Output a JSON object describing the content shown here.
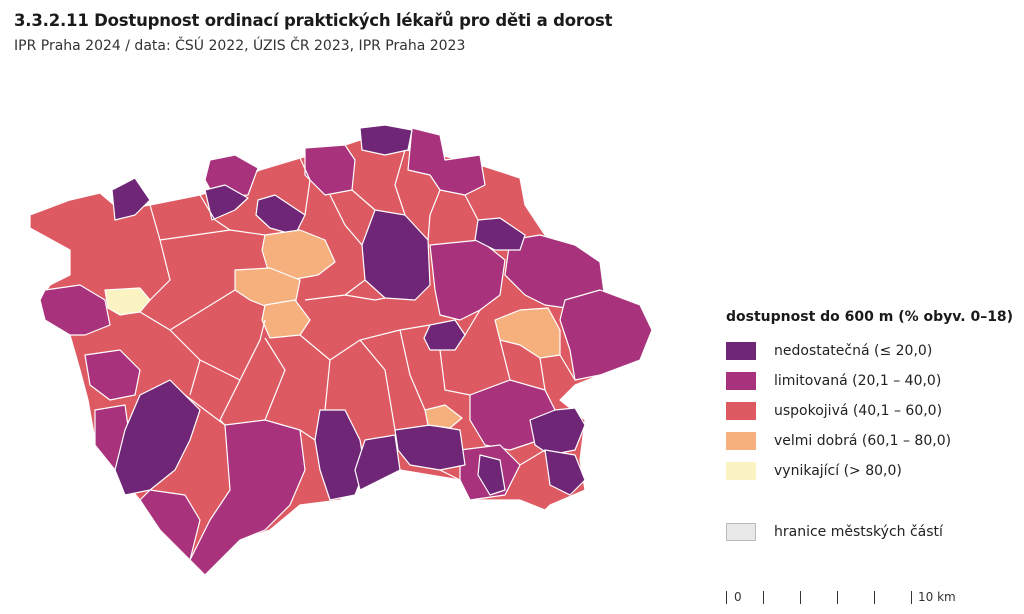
{
  "header": {
    "title": "3.3.2.11 Dostupnost ordinací praktických lékařů pro děti a dorost",
    "subtitle": "IPR Praha 2024 / data: ČSÚ 2022, ÚZIS ČR 2023, IPR Praha 2023"
  },
  "colors": {
    "nedostatecna": "#6f2676",
    "limitovana": "#a8327c",
    "uspokojiva": "#de5a63",
    "velmi_dobra": "#f6b07e",
    "vynikajici": "#fbf3c2",
    "boundary": "#ffffff"
  },
  "legend": {
    "title": "dostupnost do 600 m (% obyv. 0–18)",
    "items": [
      {
        "label": "nedostatečná (≤ 20,0)",
        "color": "#6f2676"
      },
      {
        "label": "limitovaná (20,1 – 40,0)",
        "color": "#a8327c"
      },
      {
        "label": "uspokojivá (40,1 – 60,0)",
        "color": "#de5a63"
      },
      {
        "label": "velmi dobrá (60,1 – 80,0)",
        "color": "#f6b07e"
      },
      {
        "label": "vynikající (> 80,0)",
        "color": "#fbf3c2"
      }
    ],
    "boundary_label": "hranice městských částí"
  },
  "scale": {
    "start_label": "0",
    "end_label": "10 km"
  }
}
